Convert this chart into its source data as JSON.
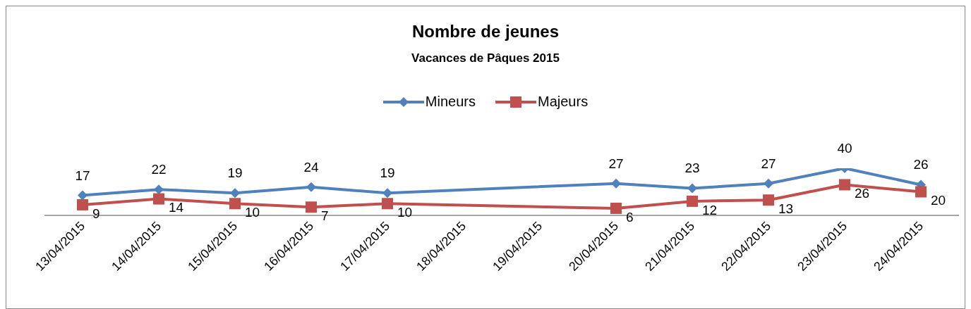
{
  "chart_data": {
    "type": "line",
    "title": "Nombre de jeunes",
    "subtitle": "Vacances de Pâques 2015",
    "x": [
      "2015-04-13",
      "2015-04-14",
      "2015-04-15",
      "2015-04-16",
      "2015-04-17",
      "2015-04-20",
      "2015-04-21",
      "2015-04-22",
      "2015-04-23",
      "2015-04-24"
    ],
    "series": [
      {
        "name": "Mineurs",
        "color": "#4f81bd",
        "marker": "diamond",
        "values": [
          17,
          22,
          19,
          24,
          19,
          27,
          23,
          27,
          40,
          26
        ]
      },
      {
        "name": "Majeurs",
        "color": "#c0504d",
        "marker": "square",
        "values": [
          9,
          14,
          10,
          7,
          10,
          6,
          12,
          13,
          26,
          20
        ]
      }
    ],
    "xlim": [
      "2015-04-12T12:00",
      "2015-04-24T12:00"
    ],
    "xticks": [
      {
        "value": "2015-04-13",
        "label": "13/04/2015"
      },
      {
        "value": "2015-04-14",
        "label": "14/04/2015"
      },
      {
        "value": "2015-04-15",
        "label": "15/04/2015"
      },
      {
        "value": "2015-04-16",
        "label": "16/04/2015"
      },
      {
        "value": "2015-04-17",
        "label": "17/04/2015"
      },
      {
        "value": "2015-04-18",
        "label": "18/04/2015"
      },
      {
        "value": "2015-04-19",
        "label": "19/04/2015"
      },
      {
        "value": "2015-04-20",
        "label": "20/04/2015"
      },
      {
        "value": "2015-04-21",
        "label": "21/04/2015"
      },
      {
        "value": "2015-04-22",
        "label": "22/04/2015"
      },
      {
        "value": "2015-04-23",
        "label": "23/04/2015"
      },
      {
        "value": "2015-04-24",
        "label": "24/04/2015"
      }
    ],
    "tick_labels": "x",
    "data_labels": true,
    "legend": "top",
    "grid": false,
    "line_style": "solid"
  }
}
